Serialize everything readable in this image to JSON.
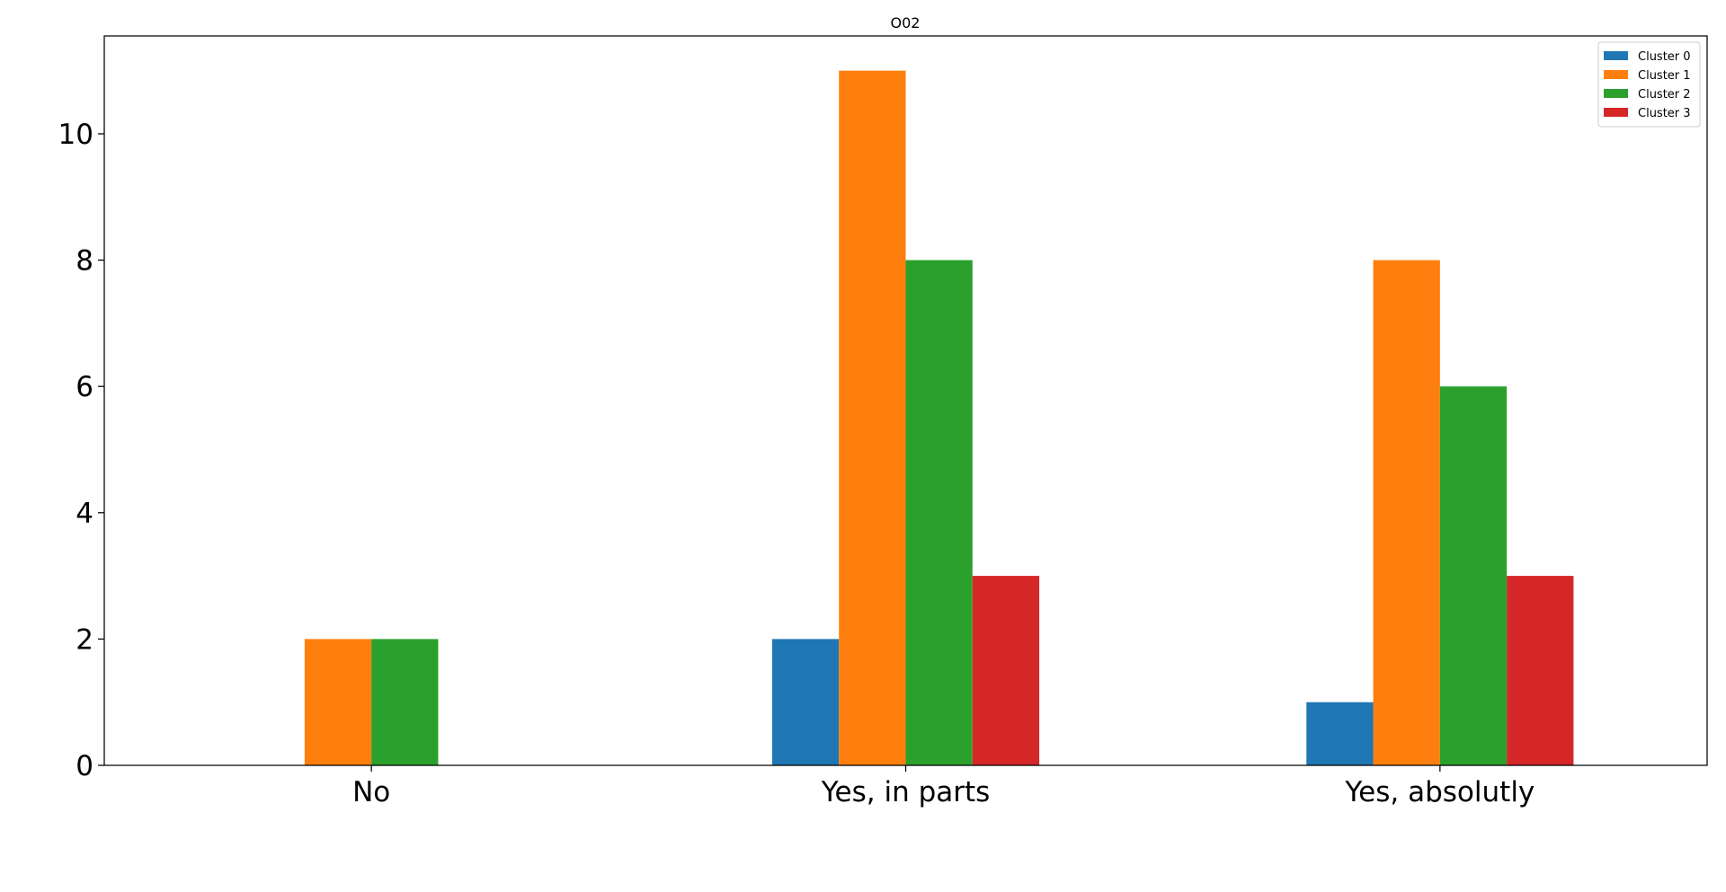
{
  "chart_data": {
    "type": "bar",
    "title": "O02",
    "xlabel": "",
    "ylabel": "",
    "categories": [
      "No",
      "Yes, in parts",
      "Yes, absolutly"
    ],
    "series": [
      {
        "name": "Cluster 0",
        "color": "#1f77b4",
        "values": [
          0,
          2,
          1
        ]
      },
      {
        "name": "Cluster 1",
        "color": "#ff7f0e",
        "values": [
          2,
          11,
          8
        ]
      },
      {
        "name": "Cluster 2",
        "color": "#2ca02c",
        "values": [
          2,
          8,
          6
        ]
      },
      {
        "name": "Cluster 3",
        "color": "#d62728",
        "values": [
          0,
          3,
          3
        ]
      }
    ],
    "ylim": [
      0,
      11.55
    ],
    "yticks": [
      0,
      2,
      4,
      6,
      8,
      10
    ],
    "grid": false,
    "legend_position": "top-right"
  }
}
